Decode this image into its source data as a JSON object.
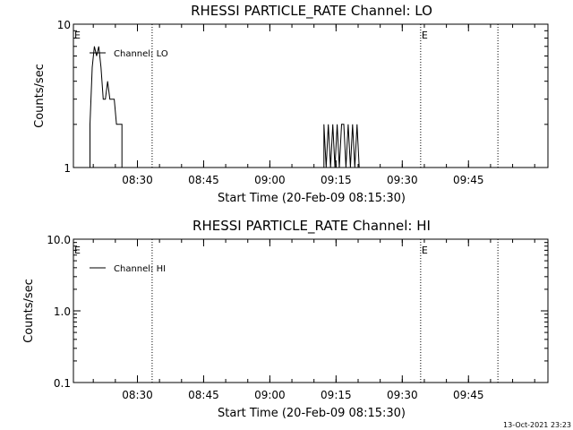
{
  "footer": {
    "timestamp": "13-Oct-2021 23:23"
  },
  "chart_data": [
    {
      "type": "line",
      "title": "RHESSI PARTICLE_RATE Channel: LO",
      "xlabel": "Start Time (20-Feb-09 08:15:30)",
      "ylabel": "Counts/sec",
      "yscale": "log",
      "ylim": [
        1,
        10
      ],
      "y_tick_labels": [
        "1",
        "10"
      ],
      "y_tick_values": [
        1,
        10
      ],
      "xlim": [
        "08:15:30",
        "10:03:00"
      ],
      "x_tick_labels": [
        "08:30",
        "08:45",
        "09:00",
        "09:15",
        "09:30",
        "09:45"
      ],
      "event_markers": [
        {
          "time": "08:15:30",
          "label": "E",
          "style": "none"
        },
        {
          "time": "08:33:20",
          "label": "",
          "style": "dotted"
        },
        {
          "time": "09:34:10",
          "label": "E",
          "style": "dotted"
        },
        {
          "time": "09:51:40",
          "label": "",
          "style": "dotted"
        }
      ],
      "legend": {
        "placement": "top-left"
      },
      "series": [
        {
          "name": "Channel: LO",
          "points": [
            [
              "08:19:15",
              1
            ],
            [
              "08:19:15",
              2
            ],
            [
              "08:19:45",
              5
            ],
            [
              "08:20:15",
              7
            ],
            [
              "08:20:45",
              6
            ],
            [
              "08:21:15",
              7
            ],
            [
              "08:21:45",
              5
            ],
            [
              "08:22:15",
              3
            ],
            [
              "08:22:45",
              3
            ],
            [
              "08:23:15",
              4
            ],
            [
              "08:23:45",
              3
            ],
            [
              "08:24:45",
              3
            ],
            [
              "08:25:15",
              2
            ],
            [
              "08:26:30",
              2
            ],
            [
              "08:26:30",
              1
            ],
            [
              "09:12:15",
              1
            ],
            [
              "09:12:15",
              2
            ],
            [
              "09:12:45",
              1
            ],
            [
              "09:13:15",
              2
            ],
            [
              "09:13:45",
              1
            ],
            [
              "09:14:15",
              2
            ],
            [
              "09:14:45",
              1
            ],
            [
              "09:15:15",
              2
            ],
            [
              "09:15:45",
              1
            ],
            [
              "09:16:15",
              2
            ],
            [
              "09:16:45",
              2
            ],
            [
              "09:17:15",
              1
            ],
            [
              "09:17:45",
              2
            ],
            [
              "09:18:15",
              1
            ],
            [
              "09:18:45",
              2
            ],
            [
              "09:19:15",
              1
            ],
            [
              "09:19:45",
              2
            ],
            [
              "09:20:15",
              1
            ]
          ]
        }
      ]
    },
    {
      "type": "line",
      "title": "RHESSI PARTICLE_RATE Channel: HI",
      "xlabel": "Start Time (20-Feb-09 08:15:30)",
      "ylabel": "Counts/sec",
      "yscale": "log",
      "ylim": [
        0.1,
        10
      ],
      "y_tick_labels": [
        "0.1",
        "1.0",
        "10.0"
      ],
      "y_tick_values": [
        0.1,
        1,
        10
      ],
      "xlim": [
        "08:15:30",
        "10:03:00"
      ],
      "x_tick_labels": [
        "08:30",
        "08:45",
        "09:00",
        "09:15",
        "09:30",
        "09:45"
      ],
      "event_markers": [
        {
          "time": "08:15:30",
          "label": "E",
          "style": "none"
        },
        {
          "time": "08:33:20",
          "label": "",
          "style": "dotted"
        },
        {
          "time": "09:34:10",
          "label": "E",
          "style": "dotted"
        },
        {
          "time": "09:51:40",
          "label": "",
          "style": "dotted"
        }
      ],
      "legend": {
        "placement": "top-left"
      },
      "series": [
        {
          "name": "Channel: HI",
          "points": []
        }
      ]
    }
  ]
}
